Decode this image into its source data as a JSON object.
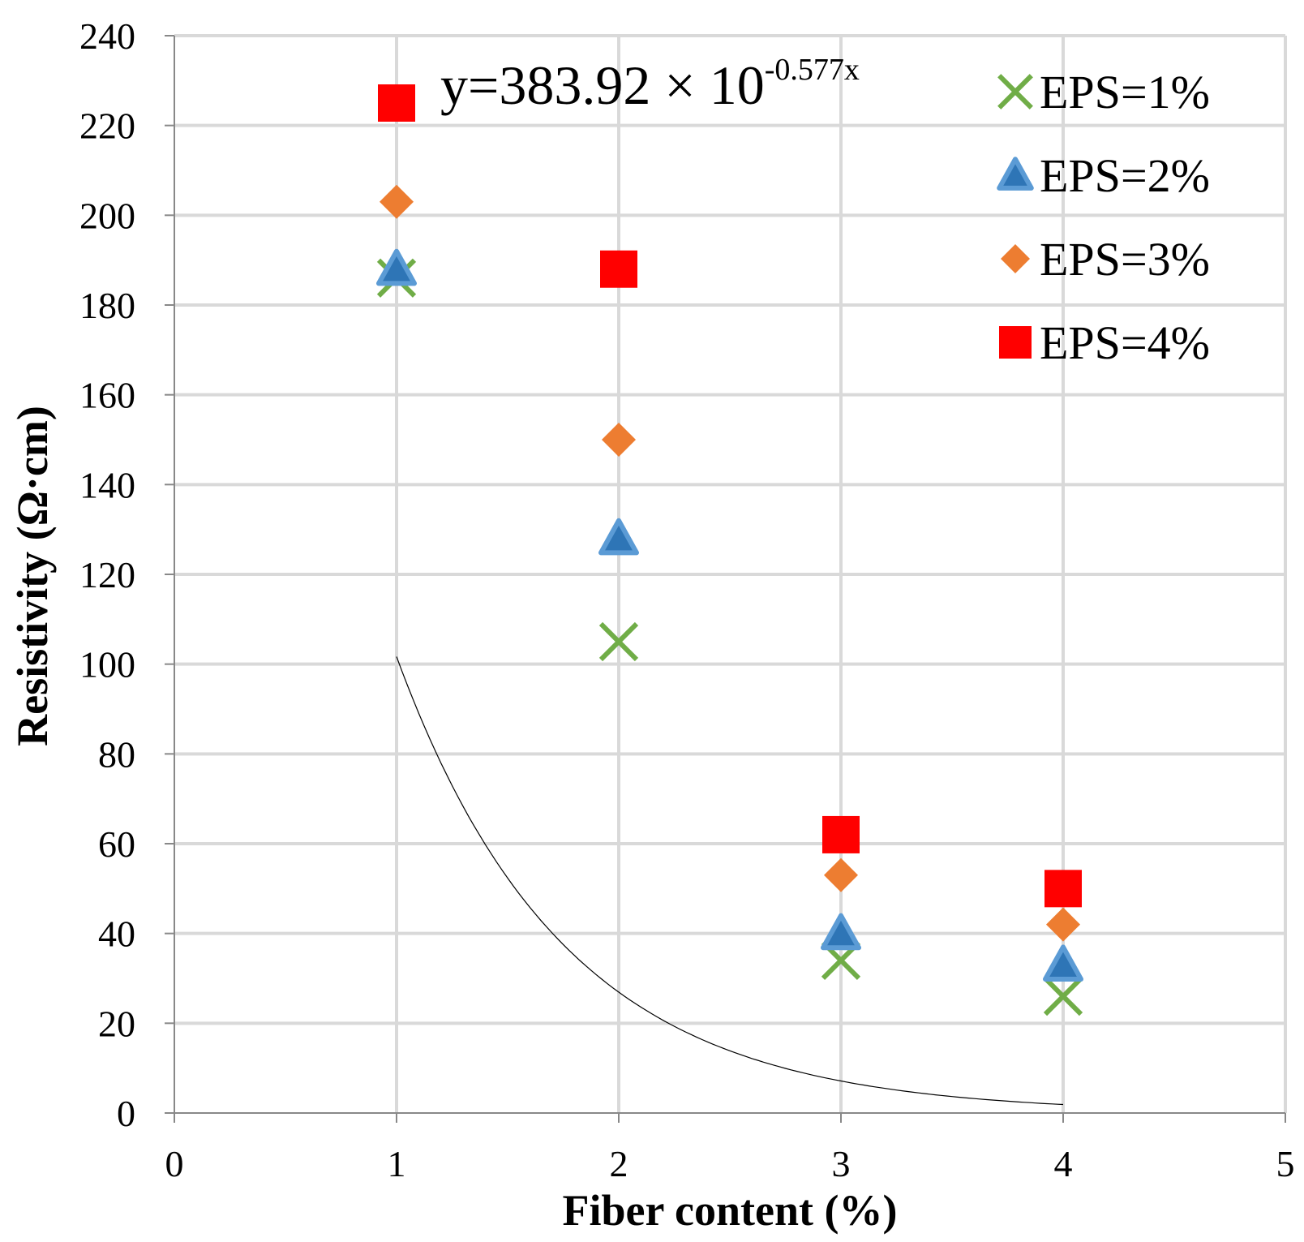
{
  "chart_data": {
    "type": "scatter",
    "title": "",
    "xlabel": "Fiber content (%)",
    "ylabel": "Resistivity (Ω·cm)",
    "xlim": [
      0,
      5
    ],
    "ylim": [
      0,
      240
    ],
    "xticks": [
      0,
      1,
      2,
      3,
      4,
      5
    ],
    "yticks": [
      0,
      20,
      40,
      60,
      80,
      100,
      120,
      140,
      160,
      180,
      200,
      220,
      240
    ],
    "grid": true,
    "legend_position": "top-right",
    "series": [
      {
        "name": "EPS=1%",
        "marker": "x",
        "color": "#70AD47",
        "x": [
          1,
          2,
          3,
          4
        ],
        "y": [
          186,
          105,
          34,
          26
        ]
      },
      {
        "name": "EPS=2%",
        "marker": "triangle",
        "color": "#2E75B6",
        "edge_color": "#5B9BD5",
        "x": [
          1,
          2,
          3,
          4
        ],
        "y": [
          188,
          128,
          40,
          33
        ]
      },
      {
        "name": "EPS=3%",
        "marker": "diamond",
        "color": "#ED7D31",
        "x": [
          1,
          2,
          3,
          4
        ],
        "y": [
          203,
          150,
          53,
          42
        ]
      },
      {
        "name": "EPS=4%",
        "marker": "square",
        "color": "#FF0000",
        "x": [
          1,
          2,
          3,
          4
        ],
        "y": [
          225,
          188,
          62,
          50
        ]
      }
    ],
    "trendline": {
      "type": "exponential",
      "a": 383.92,
      "b": -0.577,
      "x_range": [
        1,
        4
      ],
      "color": "#000000",
      "label_main": "y=383.92 × 10",
      "label_exp": "-0.577x"
    }
  }
}
